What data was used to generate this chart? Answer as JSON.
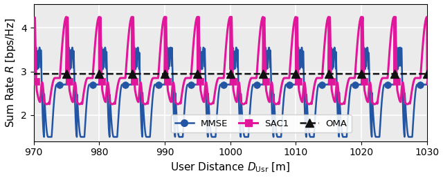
{
  "xlabel": "User Distance $D_{\\mathrm{Usr}}$ [m]",
  "ylabel": "Sum Rate $R$ [bps/Hz]",
  "xlim": [
    970,
    1030
  ],
  "ylim": [
    1.4,
    4.55
  ],
  "yticks": [
    2,
    3,
    4
  ],
  "xticks": [
    970,
    980,
    990,
    1000,
    1010,
    1020,
    1030
  ],
  "oma_value": 2.945,
  "oma_color": "#111111",
  "mmse_color": "#2255A4",
  "sac1_color": "#E0179A",
  "period": 5.0,
  "x_start": 970,
  "x_end": 1030.5,
  "n_points": 3000,
  "background_color": "#EBEBEB",
  "grid_color": "#ffffff"
}
